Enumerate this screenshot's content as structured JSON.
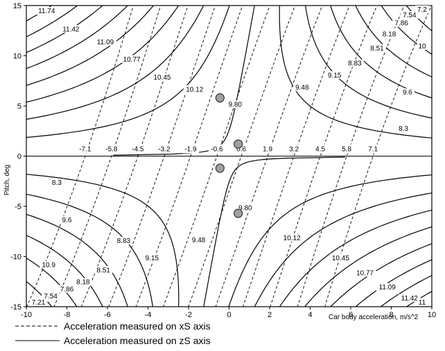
{
  "chart_data": {
    "type": "line",
    "title": "",
    "xlabel": "Car body acceleration, m/s^2",
    "ylabel": "Pitch, deg",
    "xlim": [
      -10,
      10
    ],
    "ylim": [
      -15,
      15
    ],
    "x_ticks": [
      -10,
      -8,
      -6,
      -4,
      -2,
      0,
      2,
      4,
      6,
      8,
      10
    ],
    "y_ticks": [
      -15,
      -10,
      -5,
      0,
      5,
      10,
      15
    ],
    "grid": false,
    "legend_position": "bottom-left",
    "series": [
      {
        "name": "Acceleration measured on xS axis",
        "style": "dashed",
        "contour_levels": [
          -7.1,
          -5.8,
          -4.5,
          -3.2,
          -1.9,
          -0.6,
          0.6,
          1.9,
          3.2,
          4.5,
          5.8,
          7.1
        ],
        "level_labels": [
          "-7.1",
          "-5.8",
          "-4.5",
          "-3.2",
          "-1.9",
          "-0.6",
          "0.6",
          "1.9",
          "3.2",
          "4.5",
          "5.8",
          "7.1"
        ]
      },
      {
        "name": "Acceleration measured on zS axis",
        "style": "solid",
        "contour_levels": [
          7.21,
          7.54,
          7.86,
          8.18,
          8.51,
          8.83,
          9.15,
          9.48,
          9.8,
          10.12,
          10.45,
          10.77,
          11.09,
          11.42,
          11.74
        ],
        "level_labels": [
          "7.21",
          "7.54",
          "7.86",
          "8.18",
          "8.51",
          "8.83",
          "9.15",
          "9.48",
          "9.80",
          "10.12",
          "10.45",
          "10.77",
          "11.09",
          "11.42",
          "11.74"
        ]
      }
    ],
    "labeled_contours": [
      {
        "text": "11.74",
        "x": -9.0,
        "y": 14.3
      },
      {
        "text": "11.42",
        "x": -7.8,
        "y": 12.5
      },
      {
        "text": "11.09",
        "x": -6.1,
        "y": 11.2
      },
      {
        "text": "10.77",
        "x": -4.8,
        "y": 9.5
      },
      {
        "text": "10.45",
        "x": -3.3,
        "y": 7.7
      },
      {
        "text": "10.12",
        "x": -1.7,
        "y": 6.5
      },
      {
        "text": "9.80",
        "x": 0.3,
        "y": 5.0
      },
      {
        "text": "9.48",
        "x": 3.6,
        "y": 6.7
      },
      {
        "text": "9.15",
        "x": 5.2,
        "y": 7.9
      },
      {
        "text": "8.83",
        "x": 6.2,
        "y": 9.1
      },
      {
        "text": "8.51",
        "x": 7.3,
        "y": 10.6
      },
      {
        "text": "8.18",
        "x": 7.9,
        "y": 12.0
      },
      {
        "text": "7.86",
        "x": 8.5,
        "y": 13.1
      },
      {
        "text": "7.54",
        "x": 8.9,
        "y": 13.9
      },
      {
        "text": "7.2",
        "x": 9.8,
        "y": 14.8
      },
      {
        "text": "10",
        "x": 9.6,
        "y": 10.8
      },
      {
        "text": "9.6",
        "x": 8.8,
        "y": 6.2
      },
      {
        "text": "8.3",
        "x": 8.6,
        "y": 2.6
      },
      {
        "text": "8.3",
        "x": -8.5,
        "y": -2.8
      },
      {
        "text": "9.6",
        "x": -8.0,
        "y": -6.5
      },
      {
        "text": "10.9",
        "x": -8.9,
        "y": -11.0
      },
      {
        "text": "8.18",
        "x": -7.2,
        "y": -12.7
      },
      {
        "text": "7.86",
        "x": -8.0,
        "y": -13.4
      },
      {
        "text": "7.54",
        "x": -8.8,
        "y": -14.1
      },
      {
        "text": "7.21",
        "x": -9.4,
        "y": -15.0
      },
      {
        "text": "8.51",
        "x": -6.2,
        "y": -11.5
      },
      {
        "text": "8.83",
        "x": -5.2,
        "y": -8.6
      },
      {
        "text": "9.15",
        "x": -3.8,
        "y": -10.3
      },
      {
        "text": "9.48",
        "x": -1.5,
        "y": -8.5
      },
      {
        "text": "9.80",
        "x": 0.8,
        "y": -5.3
      },
      {
        "text": "10.12",
        "x": 3.1,
        "y": -8.3
      },
      {
        "text": "10.45",
        "x": 5.5,
        "y": -10.3
      },
      {
        "text": "10.77",
        "x": 6.7,
        "y": -11.8
      },
      {
        "text": "11.09",
        "x": 7.8,
        "y": -13.2
      },
      {
        "text": "11.42",
        "x": 8.9,
        "y": -14.3
      },
      {
        "text": "11",
        "x": 9.6,
        "y": -15.8
      }
    ],
    "markers": [
      {
        "x": -0.45,
        "y": 5.8
      },
      {
        "x": 0.45,
        "y": 1.2
      },
      {
        "x": -0.45,
        "y": -1.2
      },
      {
        "x": 0.45,
        "y": -5.7
      }
    ]
  }
}
